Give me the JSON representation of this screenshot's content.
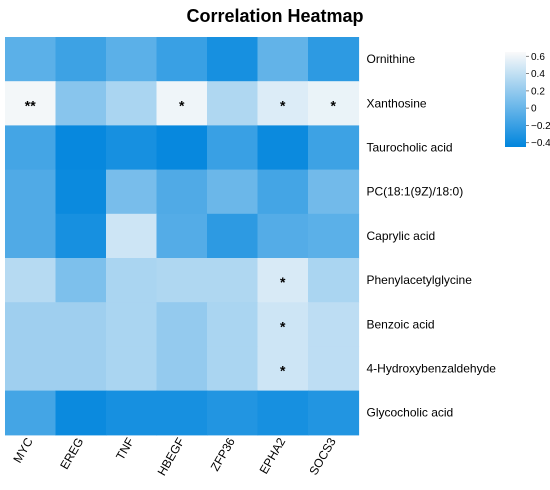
{
  "chart_data": {
    "type": "heatmap",
    "title": "Correlation Heatmap",
    "columns": [
      "MYC",
      "EREG",
      "TNF",
      "HBEGF",
      "ZFP36",
      "EPHA2",
      "SOCS3"
    ],
    "rows": [
      "Ornithine",
      "Xanthosine",
      "Taurocholic acid",
      "PC(18:1(9Z)/18:0)",
      "Caprylic acid",
      "Phenylacetylglycine",
      "Benzoic acid",
      "4-Hydroxybenzaldehyde",
      "Glycocholic acid"
    ],
    "values": [
      [
        -0.05,
        -0.18,
        -0.05,
        -0.2,
        -0.35,
        -0.02,
        -0.25
      ],
      [
        0.62,
        0.15,
        0.3,
        0.6,
        0.32,
        0.52,
        0.58
      ],
      [
        -0.15,
        -0.42,
        -0.35,
        -0.42,
        -0.2,
        -0.4,
        -0.18
      ],
      [
        -0.1,
        -0.4,
        0.08,
        -0.1,
        0.02,
        -0.15,
        0.05
      ],
      [
        -0.1,
        -0.35,
        0.45,
        -0.08,
        -0.25,
        -0.08,
        -0.05
      ],
      [
        0.35,
        0.1,
        0.3,
        0.32,
        0.32,
        0.5,
        0.3
      ],
      [
        0.25,
        0.25,
        0.3,
        0.2,
        0.3,
        0.45,
        0.38
      ],
      [
        0.25,
        0.25,
        0.3,
        0.2,
        0.3,
        0.45,
        0.38
      ],
      [
        -0.15,
        -0.4,
        -0.35,
        -0.35,
        -0.3,
        -0.35,
        -0.3
      ]
    ],
    "annotations": [
      [
        "",
        "",
        "",
        "",
        "",
        "",
        ""
      ],
      [
        "**",
        "",
        "",
        "*",
        "",
        "*",
        "*"
      ],
      [
        "",
        "",
        "",
        "",
        "",
        "",
        ""
      ],
      [
        "",
        "",
        "",
        "",
        "",
        "",
        ""
      ],
      [
        "",
        "",
        "",
        "",
        "",
        "",
        ""
      ],
      [
        "",
        "",
        "",
        "",
        "",
        "*",
        ""
      ],
      [
        "",
        "",
        "",
        "",
        "",
        "*",
        ""
      ],
      [
        "",
        "",
        "",
        "",
        "",
        "*",
        ""
      ],
      [
        "",
        "",
        "",
        "",
        "",
        "",
        ""
      ]
    ],
    "color_range": [
      -0.45,
      0.65
    ],
    "colors": {
      "low": "#0085dd",
      "high": "#fafafa"
    },
    "colorbar_ticks": [
      0.6,
      0.4,
      0.2,
      0,
      -0.2,
      -0.4
    ],
    "colorbar_tick_labels": [
      "0.6",
      "0.4",
      "0.2",
      "0",
      "−0.2",
      "−0.4"
    ],
    "legend_position": "right"
  }
}
